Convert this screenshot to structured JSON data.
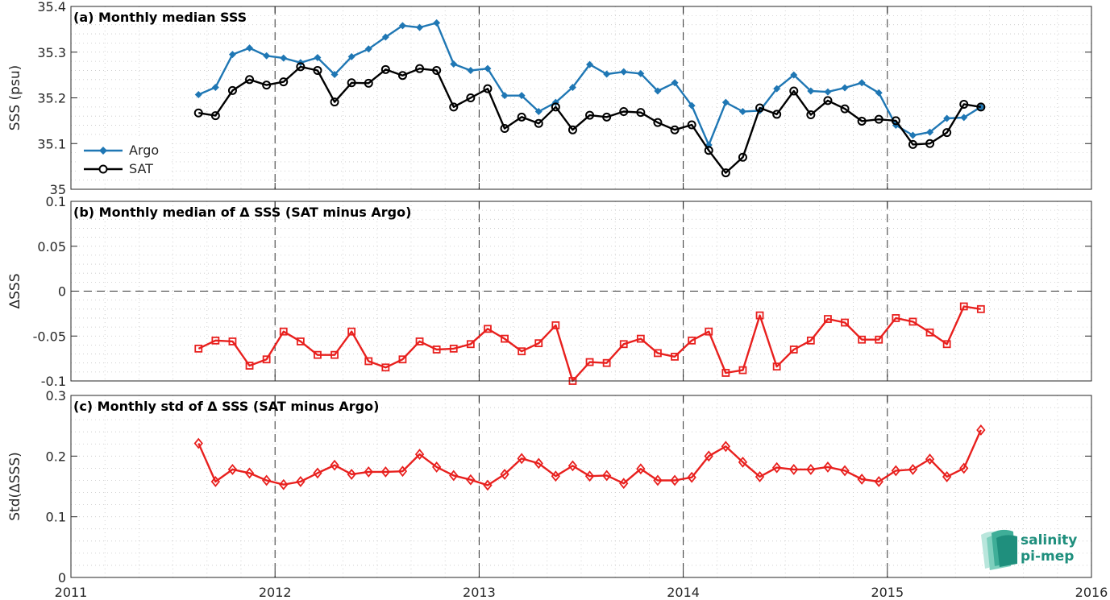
{
  "colors": {
    "argo": "#1f77b4",
    "sat": "#000000",
    "delta": "#e8201e",
    "logo": "#1f8f7d"
  },
  "logo": {
    "line1": "salinity",
    "line2": "pi-mep",
    "icon": "salinity-pimep-logo-icon"
  },
  "chart_data": [
    {
      "type": "line",
      "panel": "a",
      "title": "(a) Monthly median SSS",
      "xlabel": "",
      "ylabel": "SSS (psu)",
      "xlim": [
        2011,
        2016
      ],
      "ylim": [
        35,
        35.4
      ],
      "yticks": [
        35,
        35.1,
        35.2,
        35.3,
        35.4
      ],
      "ytick_labels": [
        "35",
        "35.1",
        "35.2",
        "35.3",
        "35.4"
      ],
      "grid": "minor-dotted",
      "legend": "bottom-left",
      "x": [
        "2011-08",
        "2011-09",
        "2011-10",
        "2011-11",
        "2011-12",
        "2012-01",
        "2012-02",
        "2012-03",
        "2012-04",
        "2012-05",
        "2012-06",
        "2012-07",
        "2012-08",
        "2012-09",
        "2012-10",
        "2012-11",
        "2012-12",
        "2013-01",
        "2013-02",
        "2013-03",
        "2013-04",
        "2013-05",
        "2013-06",
        "2013-07",
        "2013-08",
        "2013-09",
        "2013-10",
        "2013-11",
        "2013-12",
        "2014-01",
        "2014-02",
        "2014-03",
        "2014-04",
        "2014-05",
        "2014-06",
        "2014-07",
        "2014-08",
        "2014-09",
        "2014-10",
        "2014-11",
        "2014-12",
        "2015-01",
        "2015-02",
        "2015-03",
        "2015-04",
        "2015-05",
        "2015-06"
      ],
      "series": [
        {
          "name": "Argo",
          "marker": "diamond-filled",
          "values": [
            35.207,
            35.223,
            35.295,
            35.309,
            35.292,
            35.287,
            35.277,
            35.288,
            35.251,
            35.29,
            35.307,
            35.333,
            35.358,
            35.354,
            35.364,
            35.274,
            35.26,
            35.264,
            35.205,
            35.205,
            35.17,
            35.19,
            35.223,
            35.273,
            35.252,
            35.257,
            35.253,
            35.215,
            35.233,
            35.183,
            35.097,
            35.19,
            35.17,
            35.172,
            35.22,
            35.25,
            35.215,
            35.213,
            35.222,
            35.233,
            35.211,
            35.14,
            35.118,
            35.125,
            35.155,
            35.157,
            35.18
          ]
        },
        {
          "name": "SAT",
          "marker": "circle-open",
          "values": [
            35.167,
            35.161,
            35.216,
            35.24,
            35.228,
            35.235,
            35.268,
            35.26,
            35.191,
            35.233,
            35.232,
            35.262,
            35.249,
            35.264,
            35.26,
            35.18,
            35.2,
            35.22,
            35.133,
            35.158,
            35.144,
            35.18,
            35.13,
            35.162,
            35.158,
            35.17,
            35.168,
            35.146,
            35.13,
            35.141,
            35.085,
            35.036,
            35.07,
            35.178,
            35.164,
            35.215,
            35.163,
            35.194,
            35.176,
            35.149,
            35.153,
            35.15,
            35.098,
            35.1,
            35.124,
            35.186,
            35.18
          ]
        }
      ]
    },
    {
      "type": "line",
      "panel": "b",
      "title": "(b) Monthly median of Δ SSS (SAT minus Argo)",
      "xlabel": "",
      "ylabel": "ΔSSS",
      "xlim": [
        2011,
        2016
      ],
      "ylim": [
        -0.1,
        0.1
      ],
      "yticks": [
        -0.1,
        -0.05,
        0,
        0.05,
        0.1
      ],
      "ytick_labels": [
        "-0.1",
        "-0.05",
        "0",
        "0.05",
        "0.1"
      ],
      "grid": "minor-dotted",
      "zero_line": "dashed",
      "x": [
        "2011-08",
        "2011-09",
        "2011-10",
        "2011-11",
        "2011-12",
        "2012-01",
        "2012-02",
        "2012-03",
        "2012-04",
        "2012-05",
        "2012-06",
        "2012-07",
        "2012-08",
        "2012-09",
        "2012-10",
        "2012-11",
        "2012-12",
        "2013-01",
        "2013-02",
        "2013-03",
        "2013-04",
        "2013-05",
        "2013-06",
        "2013-07",
        "2013-08",
        "2013-09",
        "2013-10",
        "2013-11",
        "2013-12",
        "2014-01",
        "2014-02",
        "2014-03",
        "2014-04",
        "2014-05",
        "2014-06",
        "2014-07",
        "2014-08",
        "2014-09",
        "2014-10",
        "2014-11",
        "2014-12",
        "2015-01",
        "2015-02",
        "2015-03",
        "2015-04",
        "2015-05",
        "2015-06"
      ],
      "series": [
        {
          "name": "",
          "marker": "square-open",
          "values": [
            -0.064,
            -0.055,
            -0.056,
            -0.083,
            -0.076,
            -0.045,
            -0.056,
            -0.071,
            -0.071,
            -0.045,
            -0.078,
            -0.085,
            -0.076,
            -0.056,
            -0.065,
            -0.064,
            -0.059,
            -0.042,
            -0.053,
            -0.067,
            -0.058,
            -0.038,
            -0.1,
            -0.079,
            -0.08,
            -0.059,
            -0.053,
            -0.069,
            -0.073,
            -0.055,
            -0.045,
            -0.091,
            -0.088,
            -0.027,
            -0.084,
            -0.065,
            -0.055,
            -0.031,
            -0.035,
            -0.054,
            -0.054,
            -0.03,
            -0.034,
            -0.046,
            -0.059,
            -0.017,
            -0.02
          ]
        }
      ]
    },
    {
      "type": "line",
      "panel": "c",
      "title": "(c) Monthly std of Δ SSS (SAT minus Argo)",
      "xlabel": "",
      "ylabel": "Std(ΔSSS)",
      "xlim": [
        2011,
        2016
      ],
      "ylim": [
        0,
        0.3
      ],
      "yticks": [
        0,
        0.1,
        0.2,
        0.3
      ],
      "ytick_labels": [
        "0",
        "0.1",
        "0.2",
        "0.3"
      ],
      "xticks": [
        2011,
        2012,
        2013,
        2014,
        2015,
        2016
      ],
      "xtick_labels": [
        "2011",
        "2012",
        "2013",
        "2014",
        "2015",
        "2016"
      ],
      "grid": "minor-dotted",
      "x": [
        "2011-08",
        "2011-09",
        "2011-10",
        "2011-11",
        "2011-12",
        "2012-01",
        "2012-02",
        "2012-03",
        "2012-04",
        "2012-05",
        "2012-06",
        "2012-07",
        "2012-08",
        "2012-09",
        "2012-10",
        "2012-11",
        "2012-12",
        "2013-01",
        "2013-02",
        "2013-03",
        "2013-04",
        "2013-05",
        "2013-06",
        "2013-07",
        "2013-08",
        "2013-09",
        "2013-10",
        "2013-11",
        "2013-12",
        "2014-01",
        "2014-02",
        "2014-03",
        "2014-04",
        "2014-05",
        "2014-06",
        "2014-07",
        "2014-08",
        "2014-09",
        "2014-10",
        "2014-11",
        "2014-12",
        "2015-01",
        "2015-02",
        "2015-03",
        "2015-04",
        "2015-05",
        "2015-06"
      ],
      "series": [
        {
          "name": "",
          "marker": "diamond-open",
          "values": [
            0.221,
            0.158,
            0.178,
            0.172,
            0.16,
            0.153,
            0.158,
            0.172,
            0.185,
            0.17,
            0.174,
            0.174,
            0.175,
            0.203,
            0.182,
            0.168,
            0.161,
            0.152,
            0.17,
            0.196,
            0.188,
            0.167,
            0.184,
            0.167,
            0.168,
            0.155,
            0.179,
            0.16,
            0.16,
            0.165,
            0.2,
            0.216,
            0.19,
            0.166,
            0.181,
            0.178,
            0.178,
            0.182,
            0.176,
            0.162,
            0.158,
            0.176,
            0.178,
            0.195,
            0.166,
            0.18,
            0.243
          ]
        }
      ]
    }
  ]
}
